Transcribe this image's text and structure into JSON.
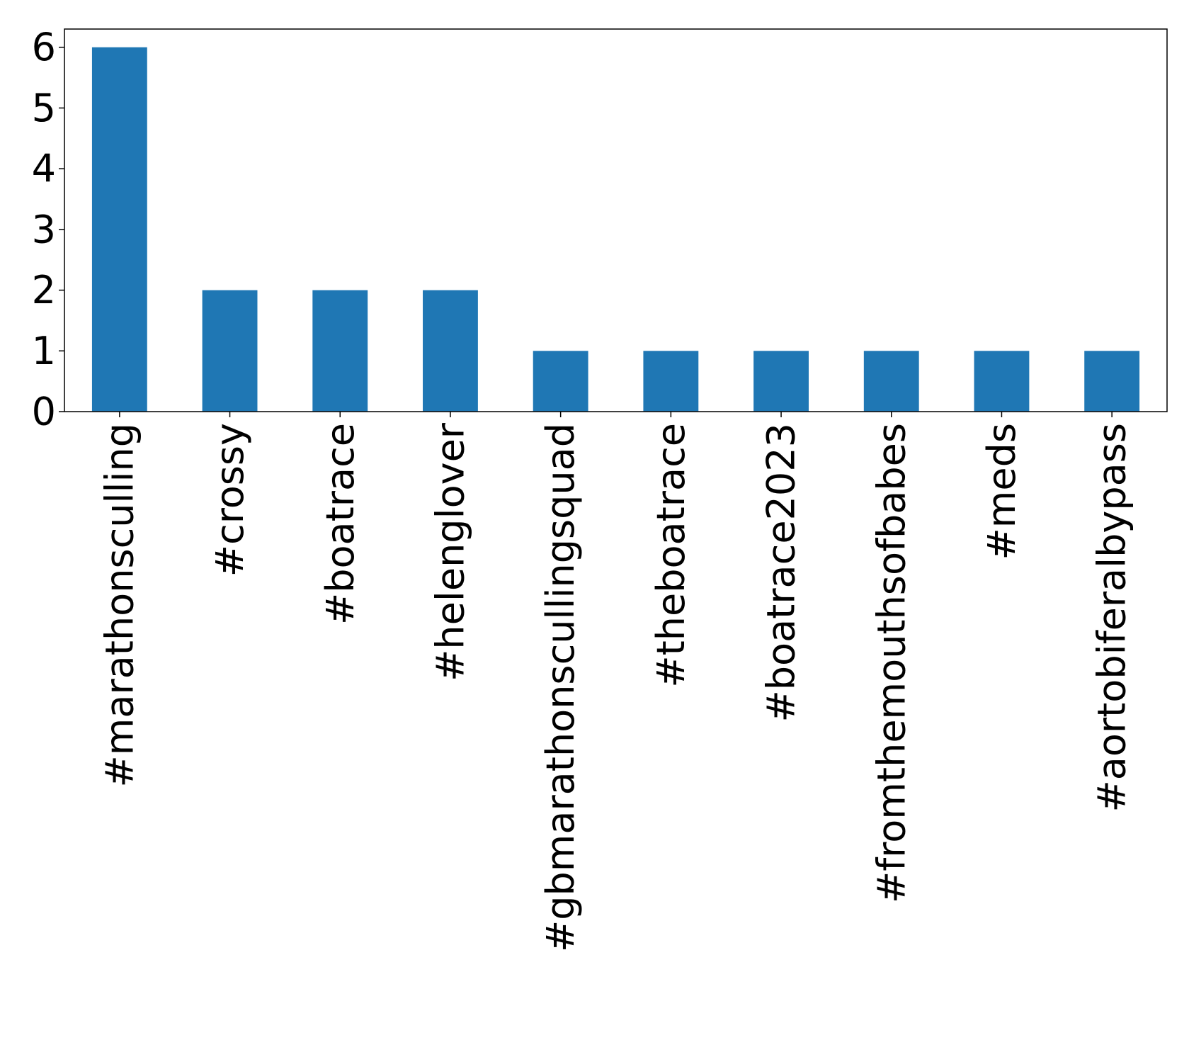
{
  "chart_data": {
    "type": "bar",
    "categories": [
      "#marathonsculling",
      "#crossy",
      "#boatrace",
      "#helenglover",
      "#gbmarathonscullingsquad",
      "#theboatrace",
      "#boatrace2023",
      "#fromthemouthsofbabes",
      "#meds",
      "#aortobiferalbypass"
    ],
    "values": [
      6,
      2,
      2,
      2,
      1,
      1,
      1,
      1,
      1,
      1
    ],
    "color": "#1f77b4",
    "ylim": [
      0,
      6.3
    ],
    "yticks": [
      0,
      1,
      2,
      3,
      4,
      5,
      6
    ],
    "grid": false
  }
}
